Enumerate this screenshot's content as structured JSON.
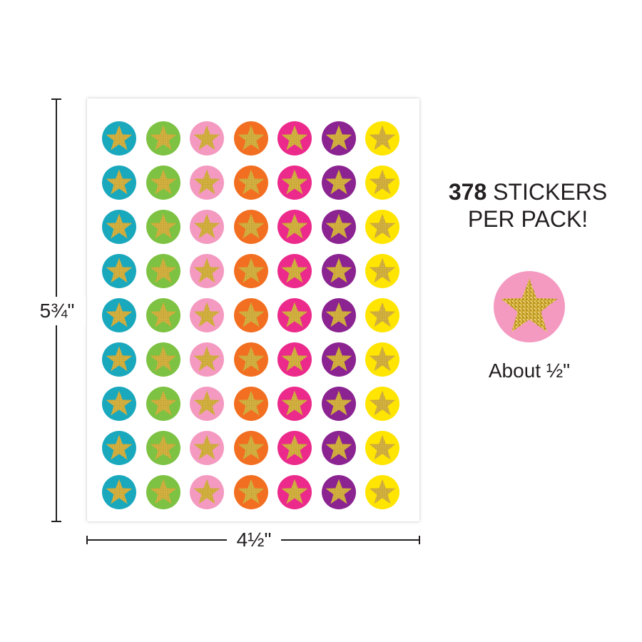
{
  "dimensions": {
    "height_label": "5¾\"",
    "width_label": "4½\""
  },
  "pack": {
    "count": "378",
    "count_suffix": " STICKERS",
    "line2": "PER PACK!"
  },
  "size_note": "About ½\"",
  "sheet": {
    "rows": 9,
    "column_colors": [
      "#1aa8bd",
      "#7dc242",
      "#f49ac1",
      "#f26f21",
      "#ec2a8b",
      "#8b2391",
      "#ffe500"
    ]
  },
  "sample_sticker": {
    "color": "#f49ac1"
  },
  "icons": {
    "sticker": "glitter-star-icon"
  },
  "colors": {
    "star_gold": "#c9a227",
    "star_light": "#f3d873",
    "star_dark": "#8a6d12"
  }
}
